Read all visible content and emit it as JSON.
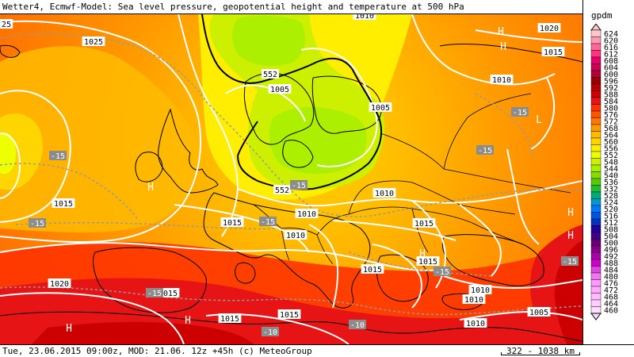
{
  "title": "Wetter4, Ecmwf-Model: Sea level pressure, geopotential height and temperature at 500 hPa",
  "footer": "Tue, 23.06.2015 09:00z, MOD: 21.06. 12z +45h (c) MeteoGroup",
  "scale_label": "322 - 1038 km",
  "legend": {
    "unit": "gpdm",
    "levels": [
      "624",
      "620",
      "616",
      "612",
      "608",
      "604",
      "600",
      "596",
      "592",
      "588",
      "584",
      "580",
      "576",
      "572",
      "568",
      "564",
      "560",
      "556",
      "552",
      "548",
      "544",
      "540",
      "536",
      "532",
      "528",
      "524",
      "520",
      "516",
      "512",
      "508",
      "504",
      "500",
      "496",
      "492",
      "488",
      "484",
      "480",
      "476",
      "472",
      "468",
      "464",
      "460"
    ],
    "colors": [
      "#ffc8c8",
      "#ff99b3",
      "#ff6699",
      "#ff3380",
      "#e6006e",
      "#cc0055",
      "#b3003c",
      "#990000",
      "#b80000",
      "#cc0000",
      "#e61414",
      "#ff3300",
      "#ff5500",
      "#ff7700",
      "#ff9900",
      "#ffbb00",
      "#ffd500",
      "#ffee00",
      "#eeff00",
      "#ccf000",
      "#aaee00",
      "#88dd00",
      "#55cc00",
      "#22bb33",
      "#00aa77",
      "#0099cc",
      "#0077ff",
      "#0055dd",
      "#0033bb",
      "#220099",
      "#440088",
      "#660077",
      "#880088",
      "#aa00aa",
      "#cc00cc",
      "#dd44dd",
      "#ee77ee",
      "#ff99ff",
      "#ffaaff",
      "#ffbbff",
      "#ffccff",
      "#ffddff"
    ],
    "labels": [
      "624",
      "620",
      "616",
      "612",
      "608",
      "604",
      "600",
      "596",
      "592",
      "588",
      "584",
      "580",
      "576",
      "572",
      "568",
      "564",
      "560",
      "556",
      "552",
      "548",
      "544",
      "540",
      "536",
      "532",
      "528",
      "524",
      "520",
      "516",
      "512",
      "508",
      "504",
      "500",
      "496",
      "492",
      "488",
      "484",
      "480",
      "476",
      "472",
      "468",
      "464",
      "460"
    ]
  },
  "map": {
    "pressure_labels": [
      {
        "text": "1025"
      },
      {
        "text": "1010"
      },
      {
        "text": "1020"
      },
      {
        "text": "1015"
      },
      {
        "text": "1010"
      },
      {
        "text": "1005"
      },
      {
        "text": "1005"
      },
      {
        "text": "1015"
      },
      {
        "text": "1010"
      },
      {
        "text": "1010"
      },
      {
        "text": "1015"
      },
      {
        "text": "1010"
      },
      {
        "text": "1015"
      },
      {
        "text": "1015"
      },
      {
        "text": "1015"
      },
      {
        "text": "1020"
      },
      {
        "text": "1015"
      },
      {
        "text": "1015"
      },
      {
        "text": "1015"
      },
      {
        "text": "1010"
      },
      {
        "text": "1010"
      },
      {
        "text": "1005"
      },
      {
        "text": "1010"
      },
      {
        "text": "25"
      }
    ],
    "geopotential_labels": [
      {
        "text": "552"
      },
      {
        "text": "552"
      }
    ],
    "temperature_labels": [
      {
        "text": "-15"
      },
      {
        "text": "-15"
      },
      {
        "text": "-15"
      },
      {
        "text": "-15"
      },
      {
        "text": "-15"
      },
      {
        "text": "-15"
      },
      {
        "text": "-15"
      },
      {
        "text": "-10"
      },
      {
        "text": "-10"
      },
      {
        "text": "-15"
      },
      {
        "text": "-15"
      }
    ],
    "pressure_centers": [
      {
        "text": "H"
      },
      {
        "text": "H"
      },
      {
        "text": "H"
      },
      {
        "text": "H"
      },
      {
        "text": "H"
      },
      {
        "text": "L"
      },
      {
        "text": "H"
      },
      {
        "text": "H"
      },
      {
        "text": "H"
      }
    ]
  }
}
